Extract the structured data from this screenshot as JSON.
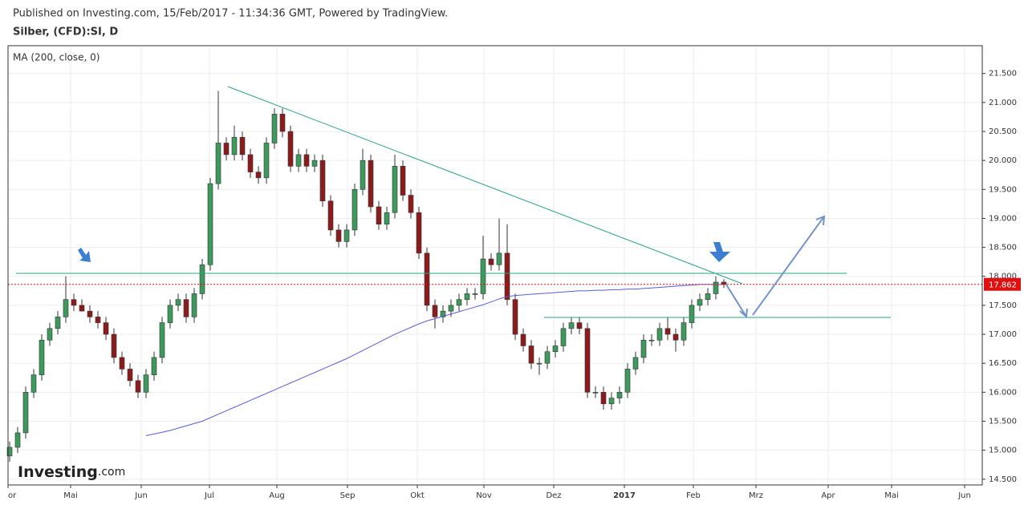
{
  "header": {
    "published": "Published on Investing.com, 15/Feb/2017 - 11:34:36 GMT, Powered by TradingView."
  },
  "chart_data": {
    "type": "candlestick",
    "title": "Silber, (CFD):SI, D",
    "logo": "Investing",
    "logo_suffix": ".com",
    "xlim": [
      -0.2,
      121.2
    ],
    "xticks": [
      {
        "value": -0.2,
        "label": "or"
      },
      {
        "value": 7.6,
        "label": "Mai"
      },
      {
        "value": 16.4,
        "label": "Jun"
      },
      {
        "value": 24.9,
        "label": "Jul"
      },
      {
        "value": 33.3,
        "label": "Aug"
      },
      {
        "value": 42.1,
        "label": "Sep"
      },
      {
        "value": 50.8,
        "label": "Okt"
      },
      {
        "value": 59.1,
        "label": "Nov"
      },
      {
        "value": 67.8,
        "label": "Dez"
      },
      {
        "value": 76.6,
        "label": "2017"
      },
      {
        "value": 85.2,
        "label": "Feb"
      },
      {
        "value": 93,
        "label": "Mrz"
      },
      {
        "value": 102,
        "label": "Apr"
      },
      {
        "value": 109.9,
        "label": "Mai"
      },
      {
        "value": 119,
        "label": "Jun"
      }
    ],
    "ylim": [
      14.4,
      21.98
    ],
    "yticks": [
      {
        "value": 14.5,
        "label": "14.500"
      },
      {
        "value": 15,
        "label": "15.000"
      },
      {
        "value": 15.5,
        "label": "15.500"
      },
      {
        "value": 16,
        "label": "16.000"
      },
      {
        "value": 16.5,
        "label": "16.500"
      },
      {
        "value": 17,
        "label": "17.000"
      },
      {
        "value": 17.5,
        "label": "17.500"
      },
      {
        "value": 18,
        "label": "18.000"
      },
      {
        "value": 18.5,
        "label": "18.500"
      },
      {
        "value": 19,
        "label": "19.000"
      },
      {
        "value": 19.5,
        "label": "19.500"
      },
      {
        "value": 20,
        "label": "20.000"
      },
      {
        "value": 20.5,
        "label": "20.500"
      },
      {
        "value": 21,
        "label": "21.000"
      },
      {
        "value": 21.5,
        "label": "21.500"
      }
    ],
    "grid": true,
    "up_color": "#3d9a5c",
    "down_color": "#8e1b1b",
    "open": [
      14.9,
      15.05,
      15.3,
      16.0,
      16.3,
      16.9,
      17.1,
      17.3,
      17.6,
      17.5,
      17.4,
      17.3,
      17.2,
      17.0,
      16.6,
      16.4,
      16.2,
      16.0,
      16.3,
      16.6,
      17.2,
      17.5,
      17.6,
      17.3,
      17.7,
      18.2,
      19.6,
      20.3,
      20.1,
      20.4,
      20.1,
      19.8,
      19.7,
      20.3,
      20.8,
      20.5,
      19.9,
      20.1,
      19.9,
      20.0,
      19.3,
      18.8,
      18.6,
      18.8,
      19.5,
      20.0,
      19.2,
      18.9,
      19.1,
      19.9,
      19.4,
      19.1,
      18.4,
      17.5,
      17.3,
      17.4,
      17.5,
      17.6,
      17.7,
      17.7,
      18.3,
      18.2,
      18.4,
      17.6,
      17.0,
      16.8,
      16.5,
      16.5,
      16.7,
      16.8,
      17.1,
      17.2,
      17.1,
      16.0,
      16.0,
      15.8,
      15.9,
      16.0,
      16.4,
      16.6,
      16.9,
      16.9,
      17.1,
      17.0,
      16.9,
      17.2,
      17.5,
      17.6,
      17.7,
      17.9
    ],
    "high": [
      15.15,
      15.4,
      16.1,
      16.4,
      17.0,
      17.2,
      17.4,
      18.0,
      17.7,
      17.6,
      17.5,
      17.4,
      17.3,
      17.1,
      16.7,
      16.5,
      16.3,
      16.4,
      16.7,
      17.3,
      17.6,
      17.7,
      17.7,
      17.8,
      18.3,
      19.7,
      21.2,
      20.4,
      20.6,
      20.5,
      20.2,
      19.9,
      20.4,
      20.9,
      20.9,
      20.6,
      20.2,
      20.2,
      20.1,
      20.1,
      19.4,
      18.9,
      18.9,
      19.6,
      20.2,
      20.1,
      19.3,
      19.2,
      20.1,
      20.0,
      19.5,
      19.2,
      18.5,
      17.6,
      17.5,
      17.6,
      17.7,
      17.8,
      17.8,
      18.7,
      18.4,
      19.0,
      18.9,
      17.7,
      17.1,
      16.9,
      16.6,
      16.8,
      16.9,
      17.2,
      17.3,
      17.3,
      17.2,
      16.1,
      16.1,
      16.0,
      16.1,
      16.5,
      16.7,
      17.0,
      17.0,
      17.2,
      17.3,
      17.1,
      17.3,
      17.6,
      17.7,
      17.8,
      18.0,
      17.95
    ],
    "low": [
      14.8,
      14.95,
      15.2,
      15.9,
      16.2,
      16.8,
      17.0,
      17.2,
      17.4,
      17.4,
      17.2,
      17.1,
      16.9,
      16.5,
      16.3,
      16.1,
      15.9,
      15.9,
      16.2,
      16.5,
      17.1,
      17.4,
      17.2,
      17.2,
      17.6,
      18.1,
      19.5,
      20.0,
      20.0,
      20.0,
      19.7,
      19.6,
      19.6,
      20.2,
      20.4,
      19.8,
      19.8,
      19.8,
      19.8,
      19.2,
      18.7,
      18.5,
      18.5,
      18.7,
      19.4,
      19.1,
      18.8,
      18.8,
      19.0,
      19.3,
      19.0,
      18.3,
      17.4,
      17.1,
      17.2,
      17.3,
      17.4,
      17.5,
      17.6,
      17.6,
      18.1,
      18.1,
      17.5,
      16.9,
      16.7,
      16.4,
      16.3,
      16.4,
      16.6,
      16.7,
      17.0,
      17.0,
      15.9,
      15.9,
      15.7,
      15.7,
      15.8,
      15.9,
      16.3,
      16.5,
      16.8,
      16.8,
      16.9,
      16.7,
      16.8,
      17.1,
      17.4,
      17.5,
      17.6,
      17.8
    ],
    "close": [
      15.05,
      15.3,
      16.0,
      16.3,
      16.9,
      17.1,
      17.3,
      17.6,
      17.5,
      17.4,
      17.3,
      17.2,
      17.0,
      16.6,
      16.4,
      16.2,
      16.0,
      16.3,
      16.6,
      17.2,
      17.5,
      17.6,
      17.3,
      17.7,
      18.2,
      19.6,
      20.3,
      20.1,
      20.4,
      20.1,
      19.8,
      19.7,
      20.3,
      20.8,
      20.5,
      19.9,
      20.1,
      19.9,
      20.0,
      19.3,
      18.8,
      18.6,
      18.8,
      19.5,
      20.0,
      19.2,
      18.9,
      19.1,
      19.9,
      19.4,
      19.1,
      18.4,
      17.5,
      17.3,
      17.4,
      17.5,
      17.6,
      17.7,
      17.7,
      18.3,
      18.2,
      18.4,
      17.6,
      17.0,
      16.8,
      16.5,
      16.5,
      16.7,
      16.8,
      17.1,
      17.2,
      17.1,
      16.0,
      16.0,
      15.8,
      15.9,
      16.0,
      16.4,
      16.6,
      16.9,
      16.9,
      17.1,
      17.0,
      16.9,
      17.2,
      17.5,
      17.6,
      17.7,
      17.9,
      17.86
    ],
    "series": [
      {
        "name": "MA (200, close, 0)",
        "color": "#5b5bd9",
        "values": [
          null,
          null,
          null,
          null,
          null,
          null,
          null,
          null,
          null,
          null,
          null,
          null,
          null,
          null,
          null,
          null,
          null,
          15.25,
          15.28,
          15.31,
          15.34,
          15.38,
          15.42,
          15.46,
          15.5,
          15.56,
          15.62,
          15.68,
          15.74,
          15.8,
          15.86,
          15.92,
          15.98,
          16.04,
          16.1,
          16.16,
          16.22,
          16.28,
          16.34,
          16.4,
          16.46,
          16.52,
          16.58,
          16.65,
          16.72,
          16.79,
          16.86,
          16.93,
          17.0,
          17.06,
          17.12,
          17.18,
          17.23,
          17.27,
          17.31,
          17.35,
          17.39,
          17.43,
          17.47,
          17.51,
          17.56,
          17.61,
          17.65,
          17.67,
          17.68,
          17.69,
          17.7,
          17.71,
          17.72,
          17.73,
          17.74,
          17.75,
          17.75,
          17.76,
          17.76,
          17.77,
          17.77,
          17.78,
          17.78,
          17.79,
          17.8,
          17.81,
          17.82,
          17.83,
          17.84,
          17.85,
          17.86,
          17.86,
          17.86,
          17.86
        ]
      }
    ],
    "last_price": 17.862,
    "last_price_color": "#e01010"
  }
}
